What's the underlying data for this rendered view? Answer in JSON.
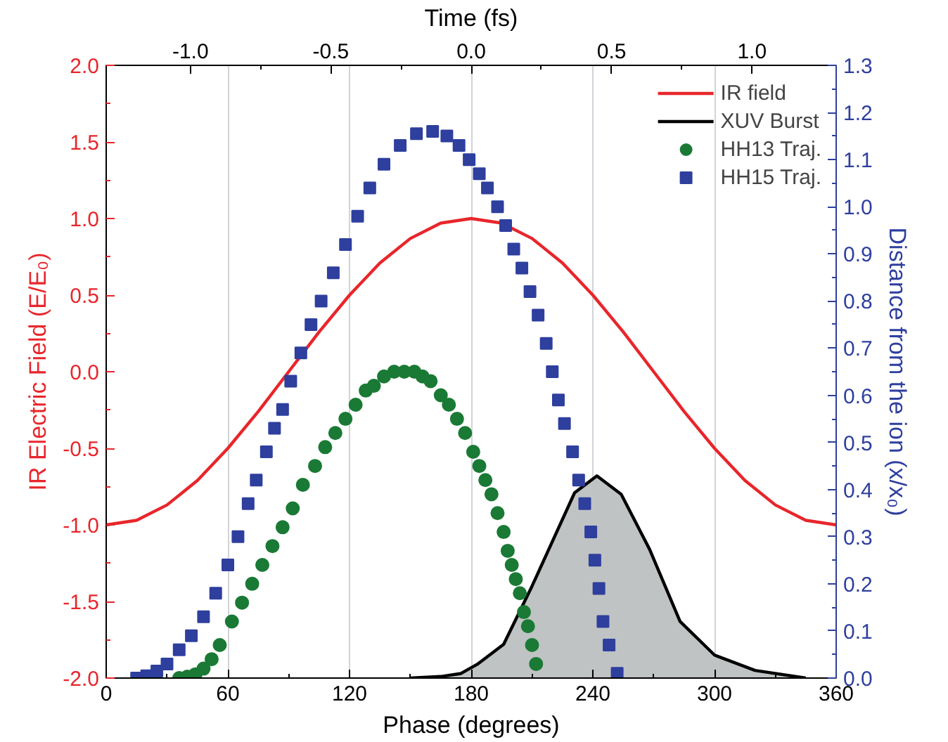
{
  "chart_data": {
    "type": "line",
    "xlabel": "Phase (degrees)",
    "ylabel": "IR Electric Field (E/E₀)",
    "y2label": "Distance from the ion (x/x₀)",
    "x2label": "Time (fs)",
    "xlim": [
      0,
      360
    ],
    "xticks": [
      0,
      60,
      120,
      180,
      240,
      300,
      360
    ],
    "x2lim": [
      -1.3,
      1.3
    ],
    "x2ticks": [
      {
        "value": -1,
        "label": "-1.0"
      },
      {
        "value": -0.5,
        "label": "-0.5"
      },
      {
        "value": 0,
        "label": "0.0"
      },
      {
        "value": 0.5,
        "label": "0.5"
      },
      {
        "value": 1,
        "label": "1.0"
      }
    ],
    "ylim": [
      -2,
      2
    ],
    "yticks": [
      {
        "value": -2,
        "label": "-2.0"
      },
      {
        "value": -1.5,
        "label": "-1.5"
      },
      {
        "value": -1,
        "label": "-1.0"
      },
      {
        "value": -0.5,
        "label": "-0.5"
      },
      {
        "value": 0,
        "label": "0.0"
      },
      {
        "value": 0.5,
        "label": "0.5"
      },
      {
        "value": 1,
        "label": "1.0"
      },
      {
        "value": 1.5,
        "label": "1.5"
      },
      {
        "value": 2,
        "label": "2.0"
      }
    ],
    "y2lim": [
      0,
      1.3
    ],
    "y2ticks": [
      {
        "value": 0,
        "label": "0.0"
      },
      {
        "value": 0.1,
        "label": "0.1"
      },
      {
        "value": 0.2,
        "label": "0.2"
      },
      {
        "value": 0.3,
        "label": "0.3"
      },
      {
        "value": 0.4,
        "label": "0.4"
      },
      {
        "value": 0.5,
        "label": "0.5"
      },
      {
        "value": 0.6,
        "label": "0.6"
      },
      {
        "value": 0.7,
        "label": "0.7"
      },
      {
        "value": 0.8,
        "label": "0.8"
      },
      {
        "value": 0.9,
        "label": "0.9"
      },
      {
        "value": 1.0,
        "label": "1.0"
      },
      {
        "value": 1.1,
        "label": "1.1"
      },
      {
        "value": 1.2,
        "label": "1.2"
      },
      {
        "value": 1.3,
        "label": "1.3"
      }
    ],
    "grid": "x",
    "legend": "top right",
    "series": [
      {
        "name": "IR field",
        "color": "#e8262b",
        "x": [
          0,
          15,
          30,
          45,
          60,
          75,
          90,
          105,
          120,
          135,
          150,
          165,
          180,
          195,
          210,
          225,
          240,
          255,
          270,
          285,
          300,
          315,
          330,
          345,
          360
        ],
        "values": [
          -1,
          -0.97,
          -0.87,
          -0.71,
          -0.5,
          -0.26,
          0,
          0.26,
          0.5,
          0.71,
          0.87,
          0.97,
          1,
          0.97,
          0.87,
          0.71,
          0.5,
          0.26,
          0,
          -0.26,
          -0.5,
          -0.71,
          -0.87,
          -0.97,
          -1
        ]
      },
      {
        "name": "XUV Burst",
        "type": "area",
        "color": "#000000",
        "x": [
          150,
          165,
          175,
          183,
          196,
          210,
          231,
          242,
          254,
          268,
          283,
          300,
          320,
          345
        ],
        "values": [
          -2,
          -1.99,
          -1.97,
          -1.91,
          -1.78,
          -1.4,
          -0.79,
          -0.68,
          -0.8,
          -1.16,
          -1.63,
          -1.85,
          -1.95,
          -2
        ]
      },
      {
        "name": "HH13 Traj.",
        "type": "scatter",
        "marker": "circle",
        "axis": "y2",
        "color": "#1a7a35",
        "x": [
          36,
          40,
          44,
          48,
          52,
          56,
          62,
          67,
          72,
          77,
          82,
          87,
          92,
          97,
          103,
          108,
          113,
          118,
          123,
          128,
          132,
          137,
          142,
          147,
          152,
          156,
          160,
          165,
          169,
          173,
          177,
          181,
          184,
          187,
          190,
          193,
          196,
          198,
          200,
          202,
          204,
          206,
          208,
          210,
          212
        ],
        "values": [
          0,
          0.003,
          0.008,
          0.02,
          0.04,
          0.07,
          0.12,
          0.16,
          0.2,
          0.24,
          0.28,
          0.32,
          0.36,
          0.41,
          0.45,
          0.49,
          0.52,
          0.55,
          0.58,
          0.61,
          0.62,
          0.64,
          0.65,
          0.65,
          0.65,
          0.64,
          0.63,
          0.6,
          0.58,
          0.55,
          0.52,
          0.48,
          0.45,
          0.42,
          0.39,
          0.35,
          0.31,
          0.27,
          0.24,
          0.21,
          0.18,
          0.14,
          0.11,
          0.07,
          0.03
        ]
      },
      {
        "name": "HH15 Traj.",
        "type": "scatter",
        "marker": "square",
        "axis": "y2",
        "color": "#2e3f9e",
        "x": [
          15,
          20,
          25,
          30,
          36,
          42,
          48,
          54,
          60,
          65,
          70,
          74,
          79,
          83,
          87,
          91,
          96,
          101,
          106,
          112,
          118,
          124,
          130,
          137,
          145,
          153,
          161,
          168,
          174,
          179,
          184,
          188,
          193,
          197,
          201,
          205,
          209,
          213,
          217,
          220,
          223,
          226,
          230,
          233,
          236,
          239,
          241,
          243,
          245,
          248,
          252
        ],
        "values": [
          0,
          0.005,
          0.015,
          0.03,
          0.06,
          0.09,
          0.13,
          0.18,
          0.24,
          0.3,
          0.37,
          0.42,
          0.48,
          0.53,
          0.57,
          0.63,
          0.69,
          0.75,
          0.8,
          0.86,
          0.92,
          0.98,
          1.04,
          1.09,
          1.13,
          1.155,
          1.16,
          1.15,
          1.13,
          1.1,
          1.07,
          1.04,
          1.0,
          0.96,
          0.91,
          0.87,
          0.82,
          0.77,
          0.71,
          0.65,
          0.59,
          0.54,
          0.48,
          0.42,
          0.37,
          0.31,
          0.25,
          0.19,
          0.12,
          0.07,
          0.01
        ]
      }
    ]
  }
}
